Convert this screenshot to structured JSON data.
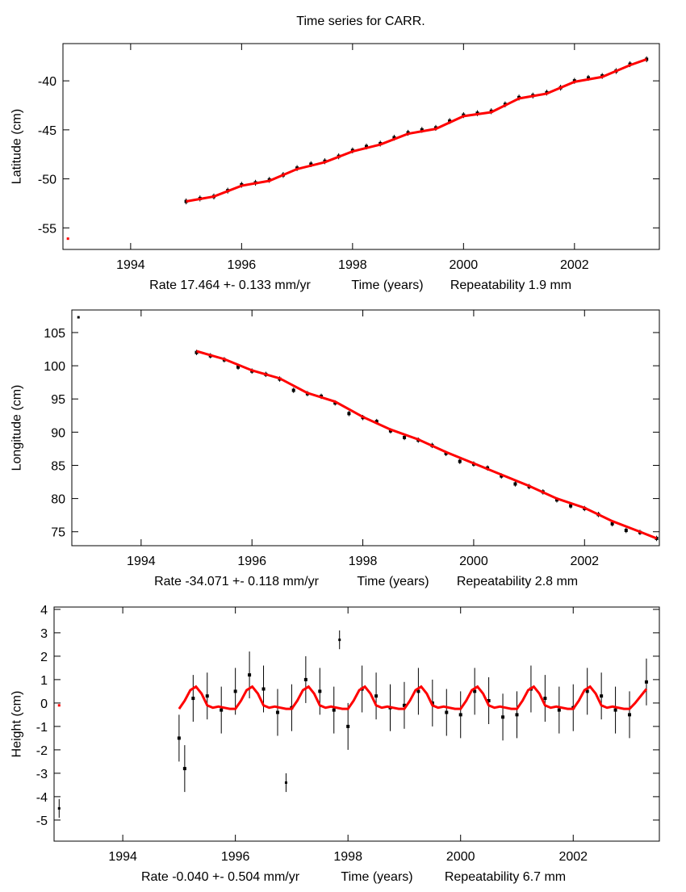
{
  "title": "Time series for CARR.",
  "colors": {
    "observations": "#000000",
    "model": "#ff0000",
    "axes": "#000000"
  },
  "chart_data": [
    {
      "type": "scatter",
      "ylabel": "Latitude (cm)",
      "xlabel_parts": [
        "Rate 17.464 +- 0.133 mm/yr",
        "Time (years)",
        "Repeatability 1.9 mm"
      ],
      "xlim": [
        1992.78,
        2003.53
      ],
      "ylim": [
        -57.2,
        -36.2
      ],
      "xticks": [
        "1994",
        "1996",
        "1998",
        "2000",
        "2002"
      ],
      "yticks": [
        "-55",
        "-50",
        "-45",
        "-40"
      ],
      "grid": false,
      "observations": {
        "x": [
          1995.0,
          1995.25,
          1995.5,
          1995.75,
          1996.0,
          1996.25,
          1996.5,
          1996.75,
          1997.0,
          1997.25,
          1997.5,
          1997.75,
          1998.0,
          1998.25,
          1998.5,
          1998.75,
          1999.0,
          1999.25,
          1999.5,
          1999.75,
          2000.0,
          2000.25,
          2000.5,
          2000.75,
          2001.0,
          2001.25,
          2001.5,
          2001.75,
          2002.0,
          2002.25,
          2002.5,
          2002.75,
          2003.0,
          2003.3
        ],
        "y": [
          -52.3,
          -52.0,
          -51.8,
          -51.2,
          -50.6,
          -50.4,
          -50.1,
          -49.6,
          -48.9,
          -48.5,
          -48.2,
          -47.7,
          -47.1,
          -46.7,
          -46.4,
          -45.8,
          -45.3,
          -45.0,
          -44.8,
          -44.1,
          -43.5,
          -43.3,
          -43.1,
          -42.4,
          -41.7,
          -41.5,
          -41.2,
          -40.7,
          -40.0,
          -39.7,
          -39.5,
          -39.0,
          -38.3,
          -37.8
        ],
        "error": 0.3
      },
      "model": {
        "x": [
          1995.0,
          1995.5,
          1996.0,
          1996.5,
          1997.0,
          1997.5,
          1998.0,
          1998.5,
          1999.0,
          1999.5,
          2000.0,
          2000.5,
          2001.0,
          2001.5,
          2002.0,
          2002.5,
          2003.0,
          2003.3
        ],
        "y": [
          -52.3,
          -51.8,
          -50.7,
          -50.2,
          -49.0,
          -48.3,
          -47.2,
          -46.5,
          -45.4,
          -44.9,
          -43.6,
          -43.2,
          -41.8,
          -41.3,
          -40.1,
          -39.6,
          -38.4,
          -37.8
        ]
      },
      "isolated_points": [
        {
          "x": 1992.87,
          "y": -56.1,
          "color": "#ff0000"
        }
      ]
    },
    {
      "type": "scatter",
      "ylabel": "Longitude (cm)",
      "xlabel_parts": [
        "Rate -34.071 +- 0.118 mm/yr",
        "Time (years)",
        "Repeatability 2.8 mm"
      ],
      "xlim": [
        1992.75,
        2003.35
      ],
      "ylim": [
        72.9,
        108.4
      ],
      "xticks": [
        "1994",
        "1996",
        "1998",
        "2000",
        "2002"
      ],
      "yticks": [
        "75",
        "80",
        "85",
        "90",
        "95",
        "100",
        "105"
      ],
      "grid": false,
      "observations": {
        "x": [
          1995.0,
          1995.25,
          1995.5,
          1995.75,
          1996.0,
          1996.25,
          1996.5,
          1996.75,
          1997.0,
          1997.25,
          1997.5,
          1997.75,
          1998.0,
          1998.25,
          1998.5,
          1998.75,
          1999.0,
          1999.25,
          1999.5,
          1999.75,
          2000.0,
          2000.25,
          2000.5,
          2000.75,
          2001.0,
          2001.25,
          2001.5,
          2001.75,
          2002.0,
          2002.25,
          2002.5,
          2002.75,
          2003.0,
          2003.3
        ],
        "y": [
          102.0,
          101.5,
          100.9,
          99.8,
          99.2,
          98.7,
          98.0,
          96.3,
          95.8,
          95.4,
          94.4,
          92.8,
          92.2,
          91.6,
          90.2,
          89.2,
          88.8,
          88.0,
          86.8,
          85.6,
          85.2,
          84.6,
          83.4,
          82.2,
          81.8,
          81.0,
          79.8,
          78.9,
          78.5,
          77.6,
          76.2,
          75.2,
          74.9,
          74.0
        ],
        "error": 0.4
      },
      "model": {
        "x": [
          1995.0,
          1995.5,
          1996.0,
          1996.5,
          1997.0,
          1997.5,
          1998.0,
          1998.5,
          1999.0,
          1999.5,
          2000.0,
          2000.5,
          2001.0,
          2001.5,
          2002.0,
          2002.5,
          2003.0,
          2003.3
        ],
        "y": [
          102.2,
          101.0,
          99.3,
          98.1,
          95.9,
          94.6,
          92.3,
          90.4,
          88.9,
          87.0,
          85.3,
          83.6,
          81.9,
          80.0,
          78.6,
          76.6,
          75.0,
          74.0
        ]
      },
      "isolated_points": [
        {
          "x": 1992.87,
          "y": 107.3,
          "color": "#000000"
        }
      ]
    },
    {
      "type": "scatter",
      "ylabel": "Height (cm)",
      "xlabel_parts": [
        "Rate -0.040 +- 0.504 mm/yr",
        "Time (years)",
        "Repeatability 6.7 mm"
      ],
      "xlim": [
        1992.78,
        2003.53
      ],
      "ylim": [
        -5.9,
        4.1
      ],
      "xticks": [
        "1994",
        "1996",
        "1998",
        "2000",
        "2002"
      ],
      "yticks": [
        "-5",
        "-4",
        "-3",
        "-2",
        "-1",
        "0",
        "1",
        "2",
        "3",
        "4"
      ],
      "grid": false,
      "observations": {
        "x": [
          1995.0,
          1995.1,
          1995.25,
          1995.5,
          1995.75,
          1996.0,
          1996.25,
          1996.5,
          1996.75,
          1997.0,
          1997.25,
          1997.5,
          1997.75,
          1998.0,
          1998.25,
          1998.5,
          1998.75,
          1999.0,
          1999.25,
          1999.5,
          1999.75,
          2000.0,
          2000.25,
          2000.5,
          2000.75,
          2001.0,
          2001.25,
          2001.5,
          2001.75,
          2002.0,
          2002.25,
          2002.5,
          2002.75,
          2003.0,
          2003.3
        ],
        "y": [
          -1.5,
          -2.8,
          0.2,
          0.3,
          -0.3,
          0.5,
          1.2,
          0.6,
          -0.4,
          -0.2,
          1.0,
          0.5,
          -0.3,
          -1.0,
          0.6,
          0.3,
          -0.2,
          -0.1,
          0.5,
          0.0,
          -0.4,
          -0.5,
          0.5,
          0.1,
          -0.6,
          -0.5,
          0.6,
          0.2,
          -0.3,
          -0.2,
          0.5,
          0.3,
          -0.3,
          -0.5,
          0.9
        ],
        "error": 1.0
      },
      "model": {
        "x": [
          1995.0,
          1995.1,
          1995.2,
          1995.3,
          1995.4,
          1995.5,
          1995.6,
          1995.7,
          1995.8,
          1995.9,
          1996.0,
          1996.1,
          1996.2,
          1996.3,
          1996.4,
          1996.5,
          1996.6,
          1996.7,
          1996.8,
          1996.9,
          1997.0,
          1997.1,
          1997.2,
          1997.3,
          1997.4,
          1997.5,
          1997.6,
          1997.7,
          1997.8,
          1997.9,
          1998.0,
          1998.1,
          1998.2,
          1998.3,
          1998.4,
          1998.5,
          1998.6,
          1998.7,
          1998.8,
          1998.9,
          1999.0,
          1999.1,
          1999.2,
          1999.3,
          1999.4,
          1999.5,
          1999.6,
          1999.7,
          1999.8,
          1999.9,
          2000.0,
          2000.1,
          2000.2,
          2000.3,
          2000.4,
          2000.5,
          2000.6,
          2000.7,
          2000.8,
          2000.9,
          2001.0,
          2001.1,
          2001.2,
          2001.3,
          2001.4,
          2001.5,
          2001.6,
          2001.7,
          2001.8,
          2001.9,
          2002.0,
          2002.1,
          2002.2,
          2002.3,
          2002.4,
          2002.5,
          2002.6,
          2002.7,
          2002.8,
          2002.9,
          2003.0,
          2003.1,
          2003.2,
          2003.3
        ],
        "y": [
          -0.25,
          0.1,
          0.55,
          0.7,
          0.4,
          -0.1,
          -0.2,
          -0.15,
          -0.2,
          -0.25,
          -0.25,
          0.1,
          0.55,
          0.7,
          0.4,
          -0.1,
          -0.2,
          -0.15,
          -0.2,
          -0.25,
          -0.25,
          0.1,
          0.55,
          0.7,
          0.4,
          -0.1,
          -0.2,
          -0.15,
          -0.2,
          -0.25,
          -0.25,
          0.1,
          0.55,
          0.7,
          0.4,
          -0.1,
          -0.2,
          -0.15,
          -0.2,
          -0.25,
          -0.25,
          0.1,
          0.55,
          0.7,
          0.4,
          -0.1,
          -0.2,
          -0.15,
          -0.2,
          -0.25,
          -0.25,
          0.1,
          0.55,
          0.7,
          0.4,
          -0.1,
          -0.2,
          -0.15,
          -0.2,
          -0.25,
          -0.25,
          0.1,
          0.55,
          0.7,
          0.4,
          -0.1,
          -0.2,
          -0.15,
          -0.2,
          -0.25,
          -0.25,
          0.1,
          0.55,
          0.7,
          0.4,
          -0.1,
          -0.2,
          -0.15,
          -0.2,
          -0.25,
          -0.25,
          0.0,
          0.3,
          0.6
        ]
      },
      "isolated_points": [
        {
          "x": 1992.87,
          "y": -4.5,
          "color": "#000000",
          "error": 0.4
        },
        {
          "x": 1992.87,
          "y": -0.1,
          "color": "#ff0000"
        },
        {
          "x": 1996.9,
          "y": -3.4,
          "color": "#000000",
          "error": 0.4
        },
        {
          "x": 1997.85,
          "y": 2.7,
          "color": "#000000",
          "error": 0.4
        }
      ]
    }
  ]
}
